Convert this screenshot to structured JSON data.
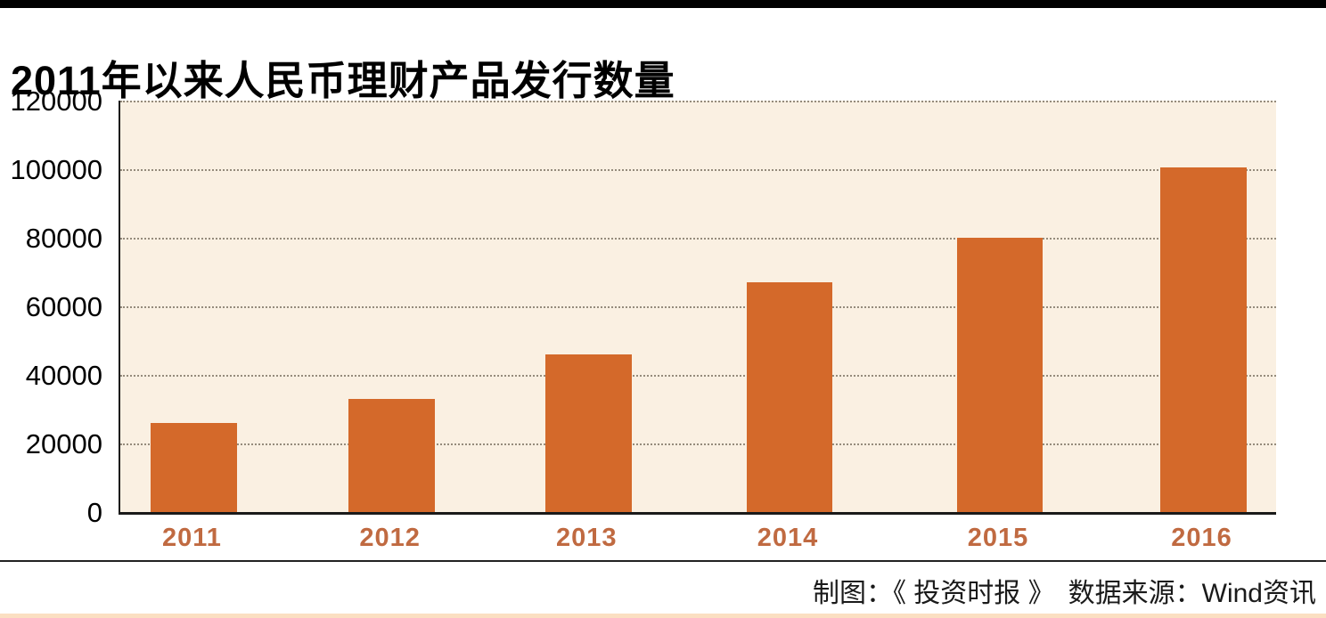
{
  "page": {
    "title": "2011年以来人民币理财产品发行数量",
    "footer_credit": "制图：《 投资时报 》　数据来源：Wind资讯"
  },
  "chart_data": {
    "type": "bar",
    "title": "2011年以来人民币理财产品发行数量",
    "categories": [
      "2011",
      "2012",
      "2013",
      "2014",
      "2015",
      "2016"
    ],
    "values": [
      26000,
      33000,
      46000,
      67000,
      80000,
      100500
    ],
    "xlabel": "",
    "ylabel": "",
    "ylim": [
      0,
      120000
    ],
    "yticks": [
      0,
      20000,
      40000,
      60000,
      80000,
      100000,
      120000
    ],
    "grid": "horizontal-dotted",
    "legend": "none",
    "credit_note": "制图：《 投资时报 》",
    "source_note": "数据来源：Wind资讯",
    "colors": {
      "bar": "#d4692a",
      "plot_background": "#faf0e2",
      "x_tick_label": "#c06a41",
      "y_tick_label": "#000000",
      "gridline": "#958b7c",
      "axis": "#1a1a1a",
      "top_rule": "#000000",
      "bottom_rule": "#fbdfc2"
    }
  }
}
